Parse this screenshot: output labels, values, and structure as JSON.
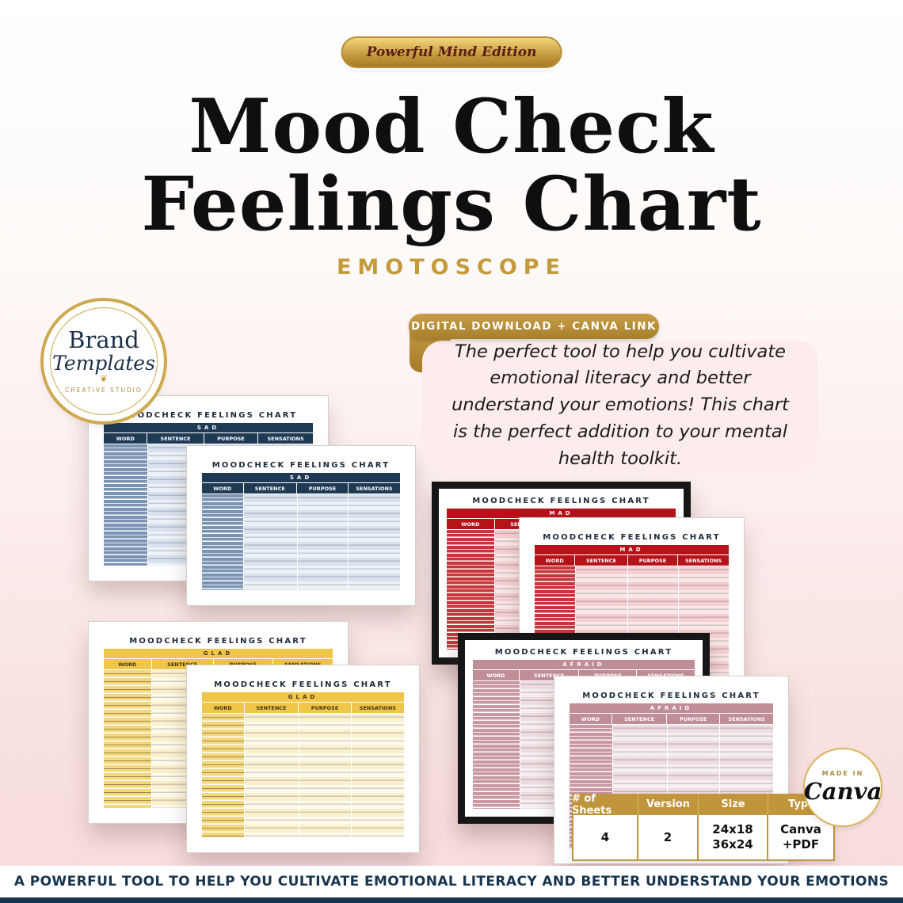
{
  "colors": {
    "gold": "#b98c3a",
    "navy": "#17344f",
    "sad": "#1f3a54",
    "mad": "#b5121a",
    "glad": "#efc54a",
    "afraid": "#bf8e97",
    "background_pink": "#f7dbdb"
  },
  "top_badge": {
    "label": "Powerful Mind Edition"
  },
  "title": {
    "line1": "Mood Check",
    "line2": "Feelings Chart",
    "subtitle": "EMOTOSCOPE"
  },
  "logo": {
    "line1": "Brand",
    "line2": "Templates",
    "flourish": "❦",
    "line3": "CREATIVE STUDIO"
  },
  "promo": {
    "download_badge": "DIGITAL DOWNLOAD + CANVA LINK",
    "description": "The perfect tool to help you cultivate emotional literacy and better understand your emotions! This chart is the perfect addition to your mental health toolkit."
  },
  "charts": {
    "title": "MOODCHECK FEELINGS CHART",
    "columns": [
      "WORD",
      "SENTENCE",
      "PURPOSE",
      "SENSATIONS"
    ],
    "moods": {
      "sad": {
        "name": "SAD"
      },
      "mad": {
        "name": "MAD"
      },
      "glad": {
        "name": "GLAD"
      },
      "afraid": {
        "name": "AFRAID"
      }
    }
  },
  "canva_badge": {
    "made_in": "MADE IN",
    "brand": "Canva"
  },
  "spec_table": {
    "headers": [
      "# of Sheets",
      "Version",
      "Size",
      "Type"
    ],
    "values": [
      "4",
      "2",
      "24x18\n36x24",
      "Canva\n+PDF"
    ]
  },
  "footer": {
    "text": "A POWERFUL TOOL TO HELP YOU CULTIVATE EMOTIONAL LITERACY AND BETTER UNDERSTAND YOUR EMOTIONS"
  }
}
